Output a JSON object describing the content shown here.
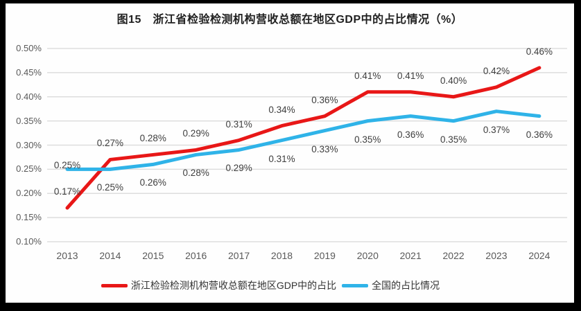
{
  "title": "图15　浙江省检验检测机构营收总额在地区GDP中的占比情况（%）",
  "colors": {
    "frame": "#000000",
    "background": "#fefefe",
    "grid": "#dddddd",
    "axis_text": "#595959",
    "label_text": "#3d3d3d",
    "zhejiang_red": "#e81717",
    "national_blue": "#2fb3e8"
  },
  "chart_data": {
    "type": "line",
    "title": "图15　浙江省检验检测机构营收总额在地区GDP中的占比情况（%）",
    "x": [
      "2013",
      "2014",
      "2015",
      "2016",
      "2017",
      "2018",
      "2019",
      "2020",
      "2021",
      "2022",
      "2023",
      "2024"
    ],
    "series": [
      {
        "name": "浙江检验检测机构营收总额在地区GDP中的占比",
        "color": "#e81717",
        "values": [
          0.17,
          0.27,
          0.28,
          0.29,
          0.31,
          0.34,
          0.36,
          0.41,
          0.41,
          0.4,
          0.42,
          0.46
        ],
        "labels": [
          "0.17%",
          "0.27%",
          "0.28%",
          "0.29%",
          "0.31%",
          "0.34%",
          "0.36%",
          "0.41%",
          "0.41%",
          "0.40%",
          "0.42%",
          "0.46%"
        ]
      },
      {
        "name": "全国的占比情况",
        "color": "#2fb3e8",
        "values": [
          0.25,
          0.25,
          0.26,
          0.28,
          0.29,
          0.31,
          0.33,
          0.35,
          0.36,
          0.35,
          0.37,
          0.36
        ],
        "labels": [
          "0.25%",
          "0.25%",
          "0.26%",
          "0.28%",
          "0.29%",
          "0.31%",
          "0.33%",
          "0.35%",
          "0.36%",
          "0.35%",
          "0.37%",
          "0.36%"
        ]
      }
    ],
    "ylim": [
      0.1,
      0.5
    ],
    "yticks": {
      "values": [
        0.5,
        0.45,
        0.4,
        0.35,
        0.3,
        0.25,
        0.2,
        0.15,
        0.1
      ],
      "labels": [
        "0.50%",
        "0.45%",
        "0.40%",
        "0.35%",
        "0.30%",
        "0.25%",
        "0.20%",
        "0.15%",
        "0.10%"
      ]
    },
    "grid": true,
    "data_labels": true,
    "legend_position": "bottom"
  }
}
